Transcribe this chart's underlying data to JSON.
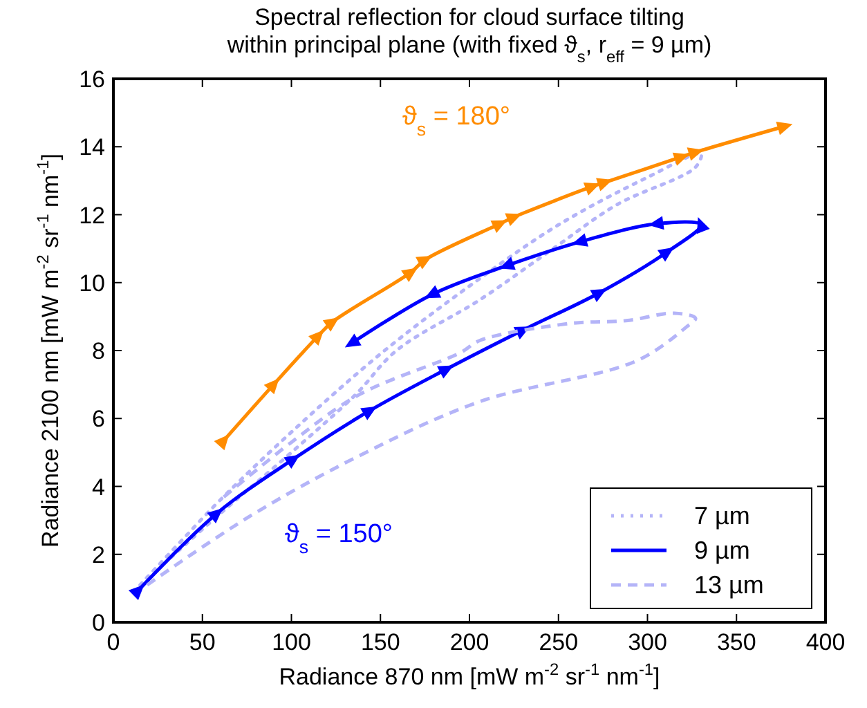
{
  "chart_data": {
    "type": "line",
    "title": "Spectral reflection for cloud surface tilting\nwithin principal plane (with fixed ϑ$_{s}$, r$_{eff}$ = 9 µm)",
    "xlabel": "Radiance 870 nm [mW m$^{-2}$ sr$^{-1}$ nm$^{-1}$]",
    "ylabel": "Radiance 2100 nm [mW m$^{-2}$ sr$^{-1}$ nm$^{-1}$]",
    "xlim": [
      0,
      400
    ],
    "xticks": [
      0,
      50,
      100,
      150,
      200,
      250,
      300,
      350,
      400
    ],
    "ylim": [
      0,
      16
    ],
    "yticks": [
      0,
      2,
      4,
      6,
      8,
      10,
      12,
      14,
      16
    ],
    "grid": false,
    "legend": "bottom right",
    "annotations": [
      "ϑ$_{s}$ = 180°",
      "ϑ$_{s}$ = 150°"
    ],
    "series": [
      {
        "name": "7 µm",
        "color": "#b4b4f8",
        "line_style": "dotted",
        "marker": "none",
        "x": [
          15,
          40,
          60,
          100,
          150,
          200,
          250,
          300,
          330,
          327,
          283,
          247,
          206,
          159,
          136,
          100,
          60,
          30
        ],
        "values": [
          1.1,
          2.5,
          3.6,
          5.6,
          7.9,
          9.9,
          11.7,
          13.1,
          13.8,
          13.4,
          12.3,
          11.0,
          9.5,
          8.0,
          6.7,
          5.0,
          3.2,
          1.8
        ]
      },
      {
        "color": "#ff8c00",
        "line_style": "solid",
        "marker": "triangle",
        "x": [
          62,
          90,
          115,
          123,
          167,
          175,
          217,
          225,
          269,
          276,
          319,
          327,
          377
        ],
        "values": [
          5.35,
          7.0,
          8.43,
          8.84,
          10.3,
          10.67,
          11.73,
          11.93,
          12.83,
          12.95,
          13.7,
          13.84,
          14.6
        ]
      },
      {
        "name": "9 µm",
        "color": "#0000ff",
        "line_style": "solid",
        "marker": "triangle",
        "x": [
          14,
          58,
          101,
          144,
          187,
          230,
          273,
          311,
          330,
          305,
          262,
          221,
          179,
          134
        ],
        "values": [
          0.94,
          3.2,
          4.8,
          6.23,
          7.45,
          8.6,
          9.7,
          10.9,
          11.7,
          11.73,
          11.2,
          10.5,
          9.65,
          8.22
        ]
      },
      {
        "name": "13 µm",
        "color": "#b4b4f8",
        "line_style": "dashed",
        "marker": "none",
        "x": [
          19,
          76,
          138,
          206,
          294,
          322,
          327,
          315,
          288,
          257,
          206,
          195,
          138,
          100,
          60
        ],
        "values": [
          1.1,
          3.1,
          4.9,
          6.5,
          7.7,
          8.7,
          8.95,
          9.1,
          8.88,
          8.8,
          8.3,
          7.94,
          6.7,
          5.3,
          3.6
        ]
      }
    ]
  }
}
